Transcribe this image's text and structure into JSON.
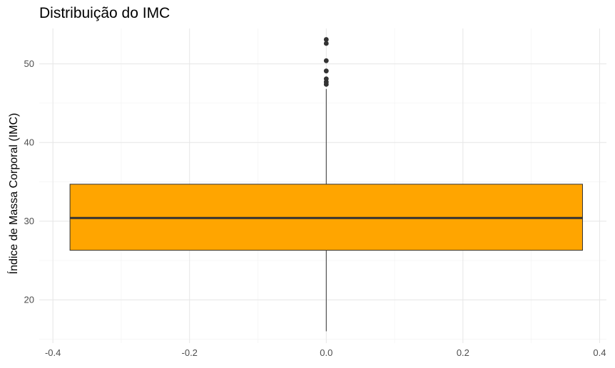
{
  "chart_data": {
    "type": "boxplot",
    "title": "Distribuição do IMC",
    "xlabel": "",
    "ylabel": "Índice de Massa Corporal (IMC)",
    "xlim": [
      -0.42,
      0.41
    ],
    "ylim": [
      14.5,
      54.5
    ],
    "x_ticks": [
      -0.4,
      -0.2,
      0.0,
      0.2,
      0.4
    ],
    "x_tick_labels": [
      "-0.4",
      "-0.2",
      "0.0",
      "0.2",
      "0.4"
    ],
    "y_ticks": [
      20,
      30,
      40,
      50
    ],
    "y_tick_labels": [
      "20",
      "30",
      "40",
      "50"
    ],
    "grid": true,
    "box": {
      "x_center": 0.0,
      "x_left": -0.375,
      "x_right": 0.375,
      "q1": 26.3,
      "median": 30.4,
      "q3": 34.7,
      "whisker_low": 16.0,
      "whisker_high": 46.8,
      "fill": "#FFA500",
      "outline": "#333333"
    },
    "outliers": [
      47.4,
      47.7,
      48.1,
      49.1,
      50.4,
      52.6,
      53.1
    ]
  }
}
